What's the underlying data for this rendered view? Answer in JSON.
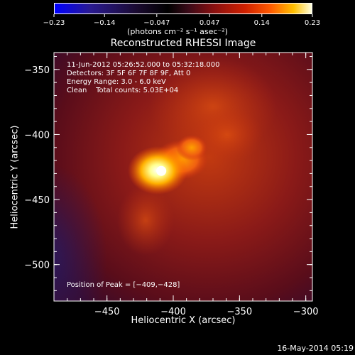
{
  "colorbar": {
    "ticks": [
      "−0.23",
      "−0.14",
      "−0.047",
      "0.047",
      "0.14",
      "0.23"
    ],
    "tick_values": [
      -0.23,
      -0.14,
      -0.047,
      0.047,
      0.14,
      0.23
    ],
    "unit_label": "(photons cm⁻² s⁻¹ asec⁻²)",
    "range": [
      -0.23,
      0.23
    ]
  },
  "chart_data": {
    "type": "heatmap",
    "title": "Reconstructed RHESSI Image",
    "xlabel": "Heliocentric X (arcsec)",
    "ylabel": "Heliocentric Y (arcsec)",
    "xlim": [
      -490,
      -295
    ],
    "ylim": [
      -528,
      -337
    ],
    "x_ticks": [
      -450,
      -400,
      -350,
      -300
    ],
    "x_tick_labels": [
      "−450",
      "−400",
      "−350",
      "−300"
    ],
    "y_ticks": [
      -350,
      -400,
      -450,
      -500
    ],
    "y_tick_labels": [
      "−350",
      "−400",
      "−450",
      "−500"
    ],
    "annotations": [
      "11-Jun-2012 05:26:52.000 to 05:32:18.000",
      "Detectors: 3F 5F 6F 7F 8F 9F, Att 0",
      "Energy Range: 3.0 - 6.0 keV",
      "Clean    Total counts: 5.03E+04"
    ],
    "peak_label": "Position of Peak = [−409,−428]",
    "peak": [
      -409,
      -428
    ]
  },
  "footer": {
    "timestamp": "16-May-2014 05:19"
  },
  "colors": {
    "background": "#000000",
    "foreground": "#ffffff",
    "colormap": "blue-black-red-yellow-white"
  }
}
